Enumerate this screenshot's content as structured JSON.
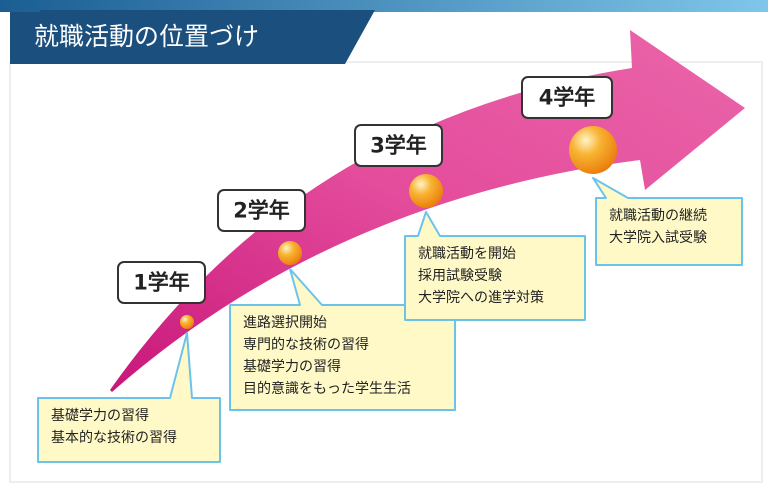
{
  "header": {
    "title": "就職活動の位置づけ"
  },
  "years": [
    "1学年",
    "2学年",
    "3学年",
    "4学年"
  ],
  "stages": [
    {
      "lines": [
        "基礎学力の習得",
        "基本的な技術の習得"
      ]
    },
    {
      "lines": [
        "進路選択開始",
        "専門的な技術の習得",
        "基礎学力の習得",
        "目的意識をもった学生生活"
      ]
    },
    {
      "lines": [
        "就職活動を開始",
        "採用試験受験",
        "大学院への進学対策"
      ]
    },
    {
      "lines": [
        "就職活動の継続",
        "大学院入試受験"
      ]
    }
  ]
}
